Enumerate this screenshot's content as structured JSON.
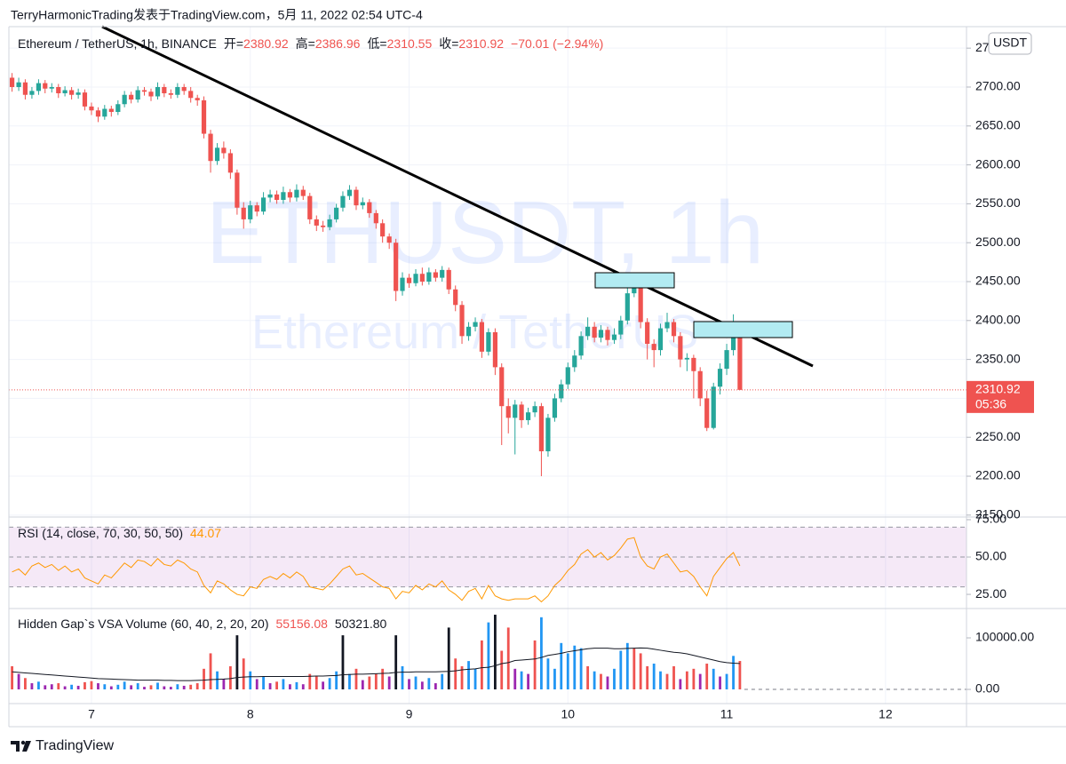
{
  "header": {
    "text": "TerryHarmonicTrading发表于TradingView.com，5月 11, 2022 02:54 UTC-4"
  },
  "footer": {
    "brand": "TradingView"
  },
  "chart_data": [
    {
      "type": "candlestick",
      "title": "Ethereum / TetherUS, 1h, BINANCE",
      "ohlc_labels": [
        "开=",
        "高=",
        "低=",
        "收="
      ],
      "change": "−70.01 (−2.94%)",
      "watermark": [
        "ETHUSDT, 1h",
        "Ethereum / TetherUS"
      ],
      "currency": "USDT",
      "countdown": "05:36",
      "up_color": "#26a69a",
      "down_color": "#ef5350",
      "grid": true,
      "xlim": [
        6.48,
        12.51
      ],
      "xticks": [
        7,
        8,
        9,
        10,
        11,
        12
      ],
      "ylim": [
        2149.8,
        2777.6
      ],
      "yticks": [
        {
          "value": 2150,
          "label": "2150.00"
        },
        {
          "value": 2200,
          "label": "2200.00"
        },
        {
          "value": 2250,
          "label": "2250.00"
        },
        {
          "value": 2300,
          "label": "2300.00"
        },
        {
          "value": 2350,
          "label": "2350.00"
        },
        {
          "value": 2400,
          "label": "2400.00"
        },
        {
          "value": 2450,
          "label": "2450.00"
        },
        {
          "value": 2500,
          "label": "2500.00"
        },
        {
          "value": 2550,
          "label": "2550.00"
        },
        {
          "value": 2600,
          "label": "2600.00"
        },
        {
          "value": 2650,
          "label": "2650.00"
        },
        {
          "value": 2700,
          "label": "2700.00"
        },
        {
          "value": 2750,
          "label": "2750.00"
        }
      ],
      "x": [
        6.5,
        6.542,
        6.583,
        6.625,
        6.667,
        6.708,
        6.75,
        6.792,
        6.833,
        6.875,
        6.917,
        6.958,
        7,
        7.042,
        7.083,
        7.125,
        7.167,
        7.208,
        7.25,
        7.292,
        7.333,
        7.375,
        7.417,
        7.458,
        7.5,
        7.542,
        7.583,
        7.625,
        7.667,
        7.708,
        7.75,
        7.792,
        7.833,
        7.875,
        7.917,
        7.958,
        8,
        8.042,
        8.083,
        8.125,
        8.167,
        8.208,
        8.25,
        8.292,
        8.333,
        8.375,
        8.417,
        8.458,
        8.5,
        8.542,
        8.583,
        8.625,
        8.667,
        8.708,
        8.75,
        8.792,
        8.833,
        8.875,
        8.917,
        8.958,
        9,
        9.042,
        9.083,
        9.125,
        9.167,
        9.208,
        9.25,
        9.292,
        9.333,
        9.375,
        9.417,
        9.458,
        9.5,
        9.542,
        9.583,
        9.625,
        9.667,
        9.708,
        9.75,
        9.792,
        9.833,
        9.875,
        9.917,
        9.958,
        10,
        10.042,
        10.083,
        10.125,
        10.167,
        10.208,
        10.25,
        10.292,
        10.333,
        10.375,
        10.417,
        10.458,
        10.5,
        10.542,
        10.583,
        10.625,
        10.667,
        10.708,
        10.75,
        10.792,
        10.833,
        10.875,
        10.917,
        10.958,
        11,
        11.042,
        11.083
      ],
      "open": [
        2712,
        2700,
        2706,
        2690,
        2695,
        2705,
        2698,
        2700,
        2692,
        2696,
        2690,
        2693,
        2675,
        2670,
        2662,
        2672,
        2668,
        2678,
        2690,
        2684,
        2696,
        2694,
        2688,
        2700,
        2692,
        2690,
        2700,
        2695,
        2686,
        2683,
        2640,
        2605,
        2622,
        2615,
        2590,
        2545,
        2530,
        2548,
        2540,
        2558,
        2562,
        2555,
        2565,
        2558,
        2568,
        2560,
        2530,
        2522,
        2520,
        2530,
        2545,
        2560,
        2568,
        2548,
        2552,
        2538,
        2525,
        2508,
        2500,
        2438,
        2455,
        2448,
        2460,
        2450,
        2462,
        2455,
        2465,
        2440,
        2420,
        2380,
        2392,
        2398,
        2360,
        2385,
        2340,
        2290,
        2275,
        2292,
        2272,
        2282,
        2290,
        2232,
        2275,
        2300,
        2318,
        2340,
        2355,
        2380,
        2392,
        2378,
        2388,
        2375,
        2382,
        2400,
        2435,
        2442,
        2398,
        2370,
        2362,
        2390,
        2398,
        2380,
        2350,
        2352,
        2335,
        2300,
        2262,
        2315,
        2338,
        2362,
        2380.92
      ],
      "high": [
        2718,
        2712,
        2710,
        2700,
        2710,
        2709,
        2705,
        2704,
        2701,
        2700,
        2698,
        2697,
        2680,
        2674,
        2677,
        2676,
        2683,
        2695,
        2694,
        2701,
        2700,
        2698,
        2706,
        2704,
        2697,
        2705,
        2704,
        2700,
        2690,
        2688,
        2645,
        2628,
        2630,
        2620,
        2594,
        2552,
        2554,
        2552,
        2565,
        2568,
        2567,
        2572,
        2569,
        2575,
        2573,
        2564,
        2535,
        2528,
        2536,
        2550,
        2566,
        2574,
        2572,
        2558,
        2556,
        2542,
        2530,
        2512,
        2505,
        2462,
        2460,
        2466,
        2468,
        2468,
        2466,
        2470,
        2468,
        2445,
        2425,
        2398,
        2404,
        2402,
        2390,
        2390,
        2345,
        2300,
        2298,
        2296,
        2288,
        2296,
        2294,
        2280,
        2306,
        2324,
        2346,
        2362,
        2386,
        2404,
        2398,
        2394,
        2392,
        2390,
        2406,
        2444,
        2456,
        2448,
        2403,
        2376,
        2396,
        2410,
        2402,
        2385,
        2358,
        2356,
        2340,
        2310,
        2320,
        2345,
        2370,
        2408,
        2386.96
      ],
      "low": [
        2694,
        2695,
        2684,
        2685,
        2690,
        2692,
        2693,
        2686,
        2688,
        2684,
        2685,
        2670,
        2664,
        2655,
        2658,
        2662,
        2664,
        2674,
        2679,
        2680,
        2689,
        2682,
        2684,
        2687,
        2685,
        2686,
        2690,
        2680,
        2676,
        2634,
        2590,
        2600,
        2608,
        2582,
        2536,
        2518,
        2525,
        2534,
        2536,
        2552,
        2550,
        2550,
        2552,
        2553,
        2555,
        2524,
        2515,
        2514,
        2516,
        2526,
        2540,
        2555,
        2542,
        2543,
        2532,
        2518,
        2500,
        2492,
        2425,
        2432,
        2442,
        2444,
        2445,
        2446,
        2450,
        2450,
        2434,
        2412,
        2370,
        2374,
        2386,
        2352,
        2355,
        2330,
        2240,
        2255,
        2228,
        2262,
        2266,
        2276,
        2200,
        2225,
        2270,
        2295,
        2312,
        2334,
        2350,
        2375,
        2372,
        2372,
        2368,
        2370,
        2376,
        2395,
        2430,
        2390,
        2350,
        2340,
        2355,
        2385,
        2372,
        2340,
        2335,
        2300,
        2290,
        2258,
        2260,
        2305,
        2330,
        2355,
        2310.55
      ],
      "close": [
        2700,
        2706,
        2690,
        2695,
        2705,
        2698,
        2700,
        2692,
        2696,
        2690,
        2693,
        2675,
        2670,
        2662,
        2672,
        2668,
        2678,
        2690,
        2684,
        2696,
        2694,
        2688,
        2700,
        2692,
        2690,
        2700,
        2695,
        2686,
        2683,
        2640,
        2605,
        2622,
        2615,
        2590,
        2545,
        2530,
        2548,
        2540,
        2558,
        2562,
        2555,
        2565,
        2558,
        2568,
        2560,
        2530,
        2522,
        2520,
        2530,
        2545,
        2560,
        2568,
        2548,
        2552,
        2538,
        2525,
        2508,
        2500,
        2438,
        2455,
        2448,
        2460,
        2450,
        2462,
        2455,
        2465,
        2440,
        2420,
        2380,
        2392,
        2398,
        2360,
        2385,
        2340,
        2290,
        2275,
        2292,
        2272,
        2282,
        2290,
        2232,
        2275,
        2300,
        2318,
        2340,
        2355,
        2380,
        2392,
        2378,
        2388,
        2375,
        2382,
        2400,
        2435,
        2442,
        2398,
        2370,
        2362,
        2390,
        2398,
        2380,
        2350,
        2352,
        2335,
        2300,
        2262,
        2315,
        2338,
        2362,
        2381,
        2310.92
      ]
    },
    {
      "type": "line",
      "title": "RSI (14, close, 70, 30, 50, 50)",
      "color": "#ff9800",
      "band": [
        70,
        30
      ],
      "midline": 50,
      "band_color": "#9c27b0",
      "ylim": [
        16.7,
        75.6
      ],
      "yticks": [
        {
          "value": 25,
          "label": "25.00"
        },
        {
          "value": 50,
          "label": "50.00"
        },
        {
          "value": 75,
          "label": "75.00"
        }
      ],
      "values": [
        40,
        42,
        38,
        44,
        46,
        43,
        45,
        41,
        44,
        40,
        42,
        36,
        34,
        32,
        38,
        36,
        41,
        46,
        43,
        48,
        47,
        44,
        49,
        45,
        44,
        48,
        46,
        42,
        40,
        31,
        26,
        34,
        32,
        28,
        25,
        24,
        30,
        29,
        35,
        37,
        35,
        39,
        36,
        40,
        37,
        30,
        29,
        28,
        32,
        37,
        42,
        44,
        38,
        39,
        36,
        33,
        30,
        29,
        22,
        27,
        26,
        31,
        28,
        32,
        30,
        34,
        28,
        25,
        21,
        27,
        29,
        22,
        31,
        24,
        22,
        21,
        22,
        22,
        22,
        24,
        20,
        24,
        31,
        35,
        41,
        45,
        52,
        55,
        50,
        53,
        48,
        51,
        56,
        62,
        63,
        50,
        44,
        42,
        50,
        52,
        46,
        40,
        41,
        37,
        30,
        24,
        37,
        43,
        49,
        53,
        44.07
      ]
    },
    {
      "type": "bar",
      "title": "Hidden Gap`s VSA Volume (60, 40, 2, 20, 20)",
      "ylim": [
        -24100,
        155200
      ],
      "yticks": [
        {
          "value": 0,
          "label": "0.00"
        },
        {
          "value": 100000,
          "label": "100000.00"
        }
      ],
      "values": [
        45000,
        30000,
        22000,
        12000,
        15000,
        8000,
        10000,
        12000,
        6000,
        9000,
        7000,
        14000,
        16000,
        12000,
        10000,
        6000,
        9000,
        15000,
        8000,
        12000,
        5000,
        8000,
        13000,
        6000,
        5000,
        10000,
        7000,
        9000,
        12000,
        40000,
        70000,
        35000,
        20000,
        45000,
        105000,
        60000,
        35000,
        20000,
        25000,
        12000,
        15000,
        20000,
        10000,
        14000,
        10000,
        30000,
        25000,
        15000,
        22000,
        35000,
        105000,
        30000,
        40000,
        18000,
        25000,
        30000,
        40000,
        25000,
        105000,
        45000,
        20000,
        25000,
        15000,
        22000,
        12000,
        30000,
        120000,
        60000,
        45000,
        55000,
        40000,
        95000,
        130000,
        145000,
        75000,
        120000,
        40000,
        35000,
        30000,
        95000,
        140000,
        60000,
        40000,
        90000,
        70000,
        85000,
        80000,
        45000,
        35000,
        30000,
        25000,
        40000,
        75000,
        90000,
        80000,
        70000,
        45000,
        50000,
        35000,
        30000,
        45000,
        20000,
        35000,
        40000,
        30000,
        50000,
        40000,
        25000,
        30000,
        65000,
        55156.08
      ],
      "colors": [
        "#ef5350",
        "#9c27b0",
        "#ef5350",
        "#9c27b0",
        "#2196f3",
        "#9c27b0",
        "#9c27b0",
        "#ef5350",
        "#9c27b0",
        "#2196f3",
        "#9c27b0",
        "#ef5350",
        "#ef5350",
        "#9c27b0",
        "#2196f3",
        "#9c27b0",
        "#2196f3",
        "#2196f3",
        "#9c27b0",
        "#2196f3",
        "#9c27b0",
        "#ef5350",
        "#2196f3",
        "#9c27b0",
        "#9c27b0",
        "#2196f3",
        "#9c27b0",
        "#ef5350",
        "#ef5350",
        "#ef5350",
        "#ef5350",
        "#2196f3",
        "#9c27b0",
        "#ef5350",
        "#131722",
        "#ef5350",
        "#2196f3",
        "#9c27b0",
        "#2196f3",
        "#9c27b0",
        "#ef5350",
        "#2196f3",
        "#9c27b0",
        "#2196f3",
        "#9c27b0",
        "#ef5350",
        "#ef5350",
        "#9c27b0",
        "#2196f3",
        "#2196f3",
        "#131722",
        "#2196f3",
        "#ef5350",
        "#9c27b0",
        "#ef5350",
        "#ef5350",
        "#ef5350",
        "#9c27b0",
        "#131722",
        "#2196f3",
        "#9c27b0",
        "#2196f3",
        "#9c27b0",
        "#2196f3",
        "#9c27b0",
        "#2196f3",
        "#131722",
        "#ef5350",
        "#ef5350",
        "#2196f3",
        "#2196f3",
        "#ef5350",
        "#2196f3",
        "#131722",
        "#ef5350",
        "#ef5350",
        "#9c27b0",
        "#2196f3",
        "#9c27b0",
        "#ef5350",
        "#2196f3",
        "#2196f3",
        "#2196f3",
        "#2196f3",
        "#2196f3",
        "#2196f3",
        "#2196f3",
        "#ef5350",
        "#2196f3",
        "#ef5350",
        "#9c27b0",
        "#2196f3",
        "#2196f3",
        "#2196f3",
        "#ef5350",
        "#ef5350",
        "#ef5350",
        "#2196f3",
        "#2196f3",
        "#ef5350",
        "#ef5350",
        "#9c27b0",
        "#ef5350",
        "#ef5350",
        "#9c27b0",
        "#ef5350",
        "#2196f3",
        "#9c27b0",
        "#2196f3",
        "#2196f3",
        "#ef5350"
      ],
      "ma": {
        "color": "#131722",
        "value_label": "50321.80",
        "values": [
          34000,
          33000,
          32000,
          31000,
          30000,
          29000,
          28000,
          27000,
          26000,
          25000,
          24000,
          23000,
          22000,
          21000,
          20500,
          20000,
          19500,
          19000,
          18500,
          18000,
          18000,
          18000,
          18000,
          17500,
          17500,
          17000,
          17000,
          17000,
          17500,
          18000,
          19000,
          19500,
          20000,
          21000,
          23000,
          24000,
          24500,
          24500,
          25000,
          25000,
          25000,
          25000,
          25000,
          25000,
          25000,
          25500,
          26000,
          26000,
          26500,
          27000,
          28500,
          29000,
          29500,
          29500,
          30000,
          30500,
          31000,
          31500,
          33000,
          33500,
          33500,
          34000,
          34000,
          34000,
          34000,
          34500,
          35000,
          36000,
          38000,
          39000,
          40000,
          42000,
          43000,
          46000,
          50000,
          52000,
          56000,
          57000,
          58000,
          59000,
          62000,
          66000,
          68000,
          70000,
          73000,
          75000,
          77000,
          79000,
          80000,
          80000,
          80000,
          79000,
          79000,
          79500,
          80000,
          80500,
          80000,
          78000,
          76000,
          74000,
          72000,
          71000,
          69000,
          66000,
          63000,
          60000,
          57000,
          54000,
          52000,
          51000,
          50321.8
        ]
      }
    }
  ]
}
